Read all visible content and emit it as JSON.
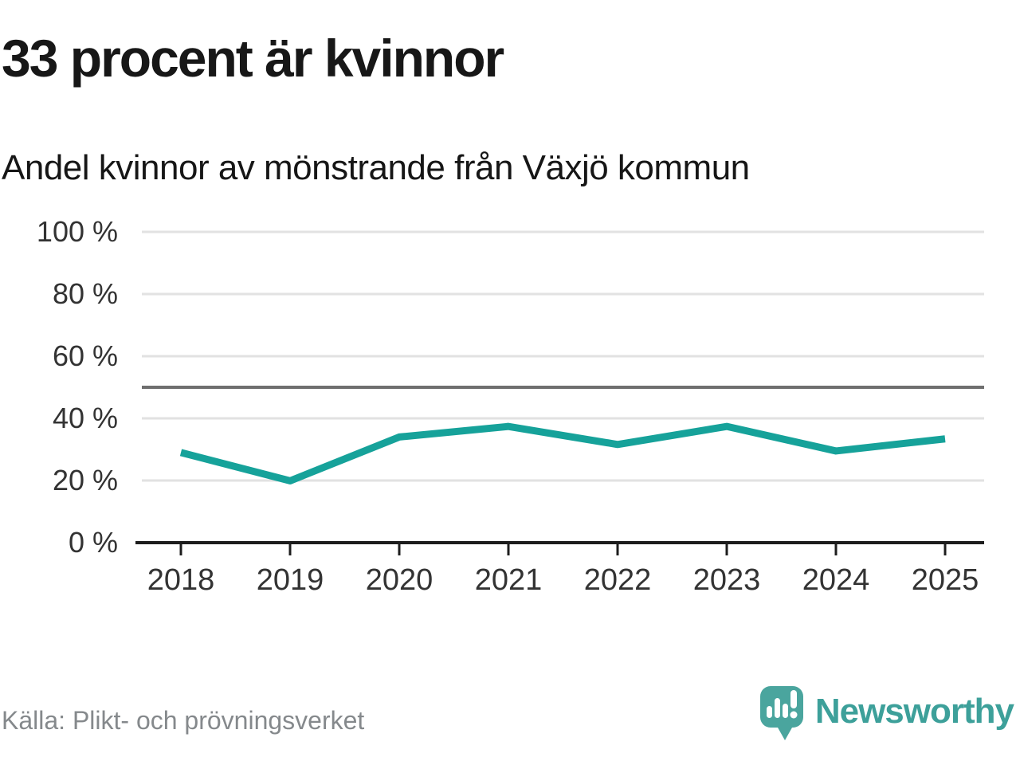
{
  "header": {
    "title": "33 procent är kvinnor",
    "subtitle": "Andel kvinnor av mönstrande från Växjö kommun"
  },
  "chart_data": {
    "type": "line",
    "title": "33 procent är kvinnor",
    "subtitle": "Andel kvinnor av mönstrande från Växjö kommun",
    "categories": [
      "2018",
      "2019",
      "2020",
      "2021",
      "2022",
      "2023",
      "2024",
      "2025"
    ],
    "series": [
      {
        "name": "Andel kvinnor av mönstrande",
        "values": [
          29,
          19.9,
          34,
          37.4,
          31.6,
          37.4,
          29.5,
          33.4
        ]
      }
    ],
    "unit": "%",
    "ylim": [
      0,
      100
    ],
    "y_ticks": [
      0,
      20,
      40,
      60,
      80,
      100
    ],
    "y_tick_suffix": " %",
    "reference_line_y": 50,
    "grid": "horizontal-only",
    "legend": "none",
    "line_color": "#16a29a",
    "gridline_color": "#e2e2e2",
    "reference_line_color": "#6f6f6f",
    "axis_color": "#1d1d1d",
    "tick_label_color": "#333333"
  },
  "footer": {
    "source": "Källa: Plikt- och prövningsverket",
    "brand": "Newsworthy",
    "brand_color": "#3da09a",
    "brand_icon_color": "#4aa59e"
  }
}
